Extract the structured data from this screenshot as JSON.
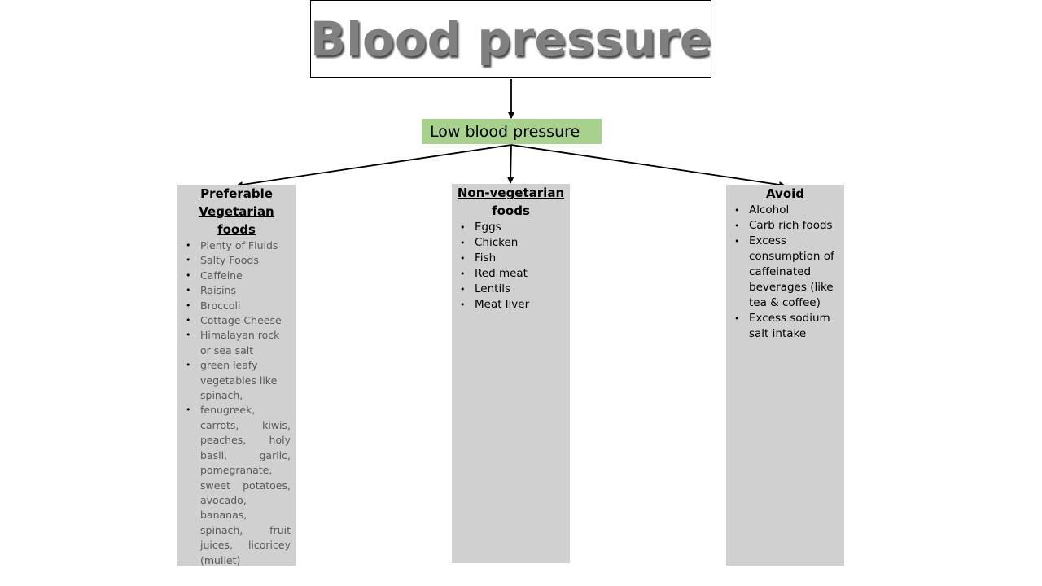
{
  "title": "Blood pressure",
  "subtitle": "Low blood pressure",
  "columns": {
    "veg": {
      "title_lines": [
        "Preferable",
        "Vegetarian",
        "foods"
      ],
      "items": [
        "Plenty of Fluids",
        "Salty Foods",
        "Caffeine",
        "Raisins",
        "Broccoli",
        "Cottage Cheese",
        "Himalayan rock or sea salt",
        "green leafy vegetables like spinach,",
        "fenugreek, carrots, kiwis, peaches, holy basil, garlic, pomegranate, sweet potatoes, avocado, bananas, spinach, fruit juices, licoricey (mullet)"
      ]
    },
    "nonveg": {
      "title_lines": [
        "Non-vegetarian",
        "foods"
      ],
      "items": [
        "Eggs",
        "Chicken",
        "Fish",
        "Red meat",
        "Lentils",
        "Meat liver"
      ]
    },
    "avoid": {
      "title_lines": [
        "Avoid"
      ],
      "items": [
        "Alcohol",
        "Carb rich foods",
        "Excess consumption of caffeinated beverages (like tea & coffee)",
        "Excess sodium salt intake"
      ]
    }
  },
  "colors": {
    "title_text": "#808080",
    "subtitle_bg": "#a9d18e",
    "column_bg": "#d0d0d0",
    "connector": "#000000"
  }
}
